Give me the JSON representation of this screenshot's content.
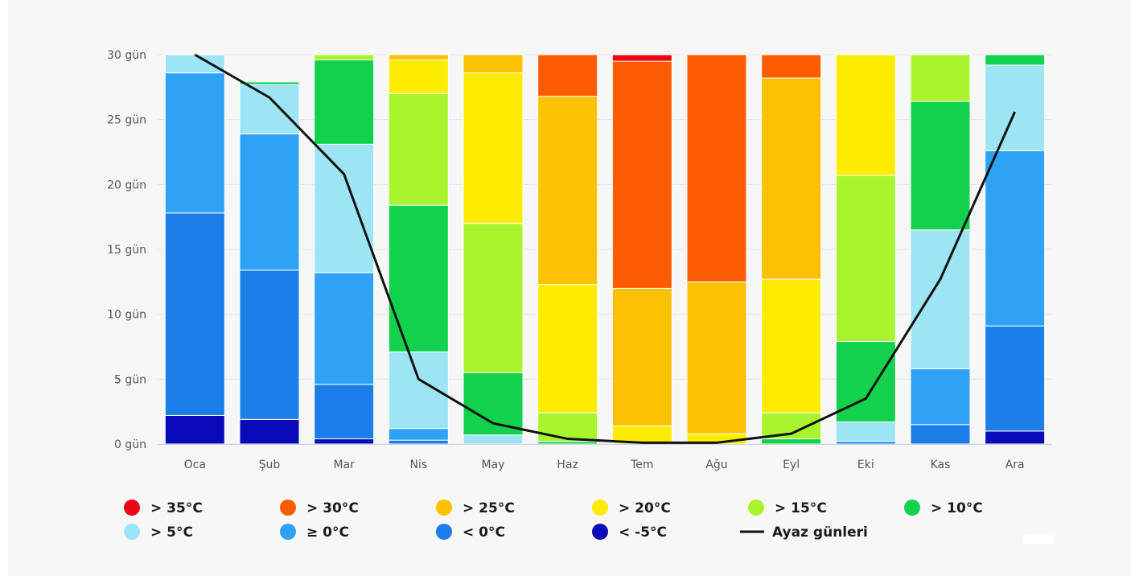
{
  "chart_data": {
    "type": "bar",
    "stacked": true,
    "ylim": [
      0,
      30
    ],
    "y_ticks": [
      0,
      5,
      10,
      15,
      20,
      25,
      30
    ],
    "y_tick_suffix": " gün",
    "grid": true,
    "legend_position": "bottom",
    "categories": [
      "Oca",
      "Şub",
      "Mar",
      "Nis",
      "May",
      "Haz",
      "Tem",
      "Ağu",
      "Eyl",
      "Eki",
      "Kas",
      "Ara"
    ],
    "series": [
      {
        "name": "< -5°C",
        "color": "#0a0ab8",
        "values": [
          2.2,
          1.9,
          0.4,
          0,
          0,
          0,
          0,
          0,
          0,
          0,
          0,
          1.0
        ]
      },
      {
        "name": "< 0°C",
        "color": "#1c7ee8",
        "values": [
          15.6,
          11.5,
          4.2,
          0.3,
          0,
          0,
          0,
          0,
          0,
          0.2,
          1.5,
          8.1
        ]
      },
      {
        "name": "≥ 0°C",
        "color": "#30a2f5",
        "values": [
          10.8,
          10.5,
          8.6,
          0.9,
          0,
          0,
          0,
          0,
          0,
          0,
          4.3,
          13.5
        ]
      },
      {
        "name": "> 5°C",
        "color": "#9de5f5",
        "values": [
          1.4,
          3.8,
          9.9,
          5.9,
          0.7,
          0,
          0,
          0,
          0,
          1.5,
          10.7,
          6.6
        ]
      },
      {
        "name": "> 10°C",
        "color": "#12d14d",
        "values": [
          0,
          0.2,
          6.5,
          11.3,
          4.8,
          0.2,
          0,
          0,
          0.4,
          6.2,
          9.9,
          0.8
        ]
      },
      {
        "name": "> 15°C",
        "color": "#a8f52e",
        "values": [
          0,
          0,
          0.4,
          8.6,
          11.5,
          2.2,
          0.1,
          0,
          2.0,
          12.8,
          3.6,
          0
        ]
      },
      {
        "name": "> 20°C",
        "color": "#fcec00",
        "values": [
          0,
          0,
          0,
          2.6,
          11.6,
          9.9,
          1.3,
          0.8,
          10.3,
          9.3,
          0,
          0
        ]
      },
      {
        "name": "> 25°C",
        "color": "#fbc102",
        "values": [
          0,
          0,
          0,
          0.4,
          1.4,
          14.5,
          10.6,
          11.7,
          15.5,
          0,
          0,
          0
        ]
      },
      {
        "name": "> 30°C",
        "color": "#fd5c00",
        "values": [
          0,
          0,
          0,
          0,
          0,
          3.2,
          17.5,
          17.5,
          1.8,
          0,
          0,
          0
        ]
      },
      {
        "name": "> 35°C",
        "color": "#ec0516",
        "values": [
          0,
          0,
          0,
          0,
          0,
          0,
          0.5,
          0,
          0,
          0,
          0,
          0
        ]
      }
    ],
    "line_series": {
      "name": "Ayaz günleri",
      "color": "#111111",
      "values": [
        30,
        26.7,
        20.8,
        5.0,
        1.6,
        0.4,
        0.1,
        0.1,
        0.8,
        3.5,
        12.7,
        25.6
      ]
    },
    "legend": [
      {
        "label": "> 35°C",
        "color": "#ec0516",
        "marker": "dot"
      },
      {
        "label": "> 30°C",
        "color": "#fd5c00",
        "marker": "dot"
      },
      {
        "label": "> 25°C",
        "color": "#fbc102",
        "marker": "dot"
      },
      {
        "label": "> 20°C",
        "color": "#fcec00",
        "marker": "dot"
      },
      {
        "label": "> 15°C",
        "color": "#a8f52e",
        "marker": "dot"
      },
      {
        "label": "> 10°C",
        "color": "#12d14d",
        "marker": "dot"
      },
      {
        "label": "> 5°C",
        "color": "#9de5f5",
        "marker": "dot"
      },
      {
        "label": "≥ 0°C",
        "color": "#30a2f5",
        "marker": "dot"
      },
      {
        "label": "< 0°C",
        "color": "#1c7ee8",
        "marker": "dot"
      },
      {
        "label": "< -5°C",
        "color": "#0a0ab8",
        "marker": "dot"
      },
      {
        "label": "Ayaz günleri",
        "color": "#111111",
        "marker": "line"
      }
    ]
  }
}
